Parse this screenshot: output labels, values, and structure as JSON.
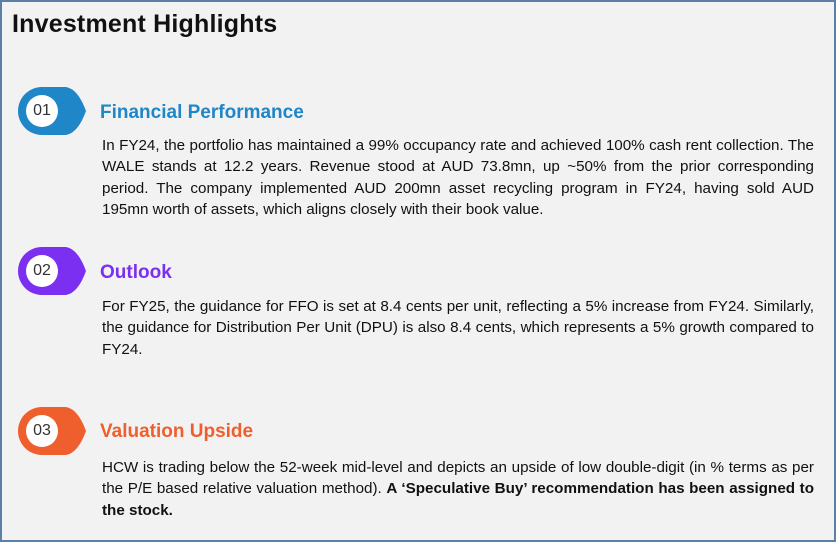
{
  "title": "Investment Highlights",
  "colors": {
    "border": "#5b7fa6",
    "background": "#f2f2f2",
    "blue": "#1f86c7",
    "purple": "#7b2ff0",
    "orange": "#ef5f2e"
  },
  "sections": [
    {
      "number": "01",
      "heading": "Financial Performance",
      "text": "In FY24, the portfolio has maintained a 99% occupancy rate and achieved 100% cash rent collection. The WALE stands at 12.2 years. Revenue stood at AUD 73.8mn, up ~50% from the prior corresponding period.  The company implemented AUD 200mn asset recycling program in FY24, having sold AUD 195mn worth of assets, which aligns closely with their book value."
    },
    {
      "number": "02",
      "heading": "Outlook",
      "text": "For FY25, the guidance for FFO is set at 8.4 cents per unit, reflecting a 5% increase from FY24. Similarly, the guidance for Distribution Per Unit (DPU) is also 8.4 cents, which represents a 5% growth compared to FY24."
    },
    {
      "number": "03",
      "heading": "Valuation Upside",
      "text": "HCW is trading below the 52-week mid-level and depicts an upside of low double-digit (in % terms as per the P/E based relative valuation method). ",
      "text_bold": "A ‘Speculative Buy’ recommendation has been assigned to the stock."
    }
  ]
}
